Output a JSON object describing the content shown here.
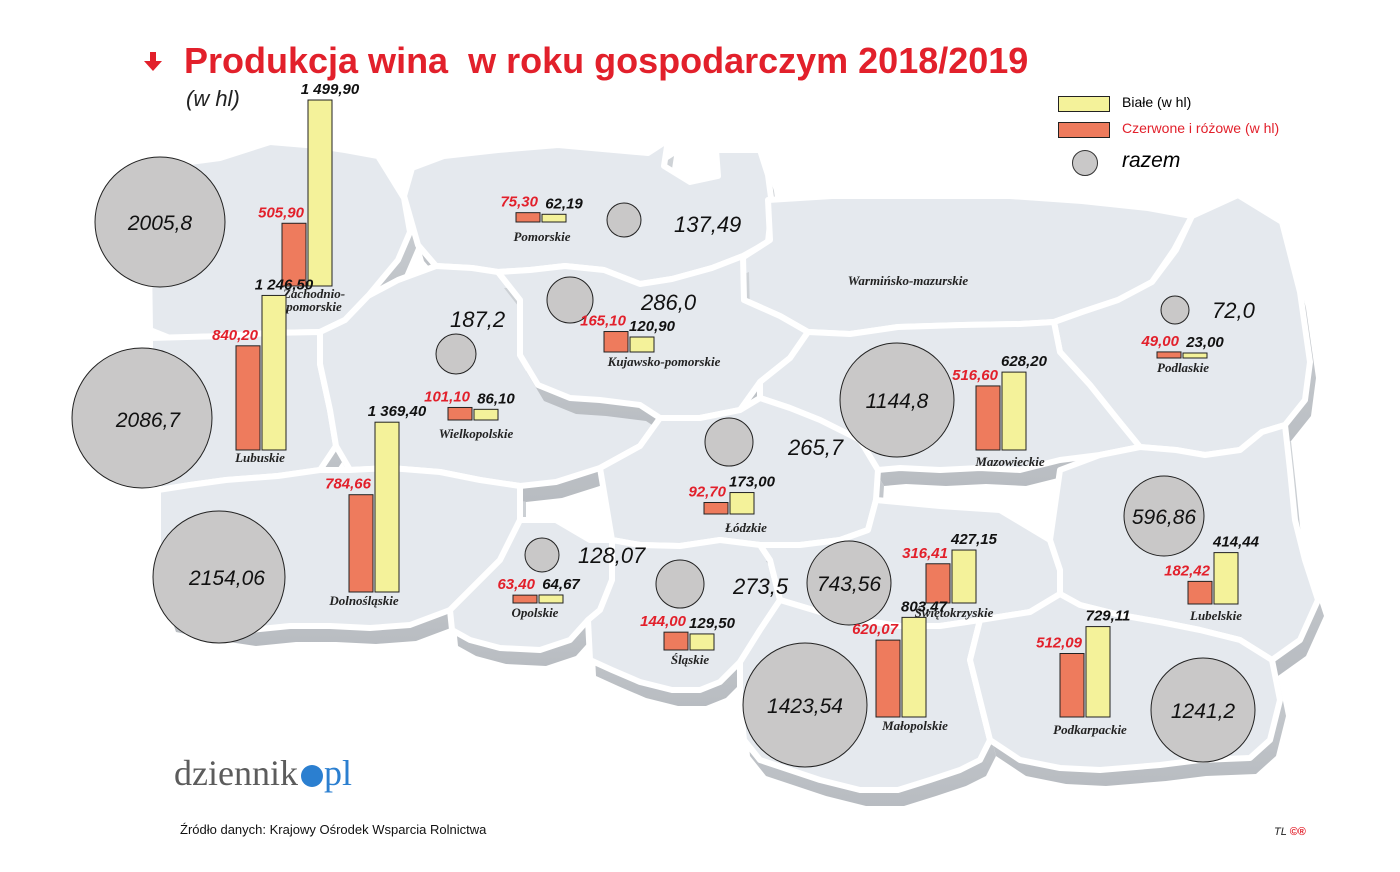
{
  "title": "Produkcja wina  w roku gospodarczym 2018/2019",
  "subtitle": "(w hl)",
  "legend": {
    "white": "Białe (w hl)",
    "red": "Czerwone i różowe (w hl)",
    "total": "razem"
  },
  "colors": {
    "title": "#e2202b",
    "white_bar": "#f4f29a",
    "red_bar": "#ee7b5d",
    "circle": "#c9c8c8",
    "region": "#e5e9ee",
    "red_value_text": "#e2202b",
    "logo_blue": "#2b7fd0"
  },
  "regions": [
    {
      "name": "Zachodnio-\npomorskie",
      "red": "505,90",
      "white": "1 499,90",
      "red_hl": 505.9,
      "white_hl": 1499.9,
      "total": "2005,8",
      "total_hl": 2005.8
    },
    {
      "name": "Pomorskie",
      "red": "75,30",
      "white": "62,19",
      "red_hl": 75.3,
      "white_hl": 62.19,
      "total": "137,49",
      "total_hl": 137.49
    },
    {
      "name": "Warmińsko-mazurskie"
    },
    {
      "name": "Podlaskie",
      "red": "49,00",
      "white": "23,00",
      "red_hl": 49.0,
      "white_hl": 23.0,
      "total": "72,0",
      "total_hl": 72.0
    },
    {
      "name": "Lubuskie",
      "red": "840,20",
      "white": "1 246,50",
      "red_hl": 840.2,
      "white_hl": 1246.5,
      "total": "2086,7",
      "total_hl": 2086.7
    },
    {
      "name": "Wielkopolskie",
      "red": "101,10",
      "white": "86,10",
      "red_hl": 101.1,
      "white_hl": 86.1,
      "total": "187,2",
      "total_hl": 187.2
    },
    {
      "name": "Kujawsko-pomorskie",
      "red": "165,10",
      "white": "120,90",
      "red_hl": 165.1,
      "white_hl": 120.9,
      "total": "286,0",
      "total_hl": 286.0
    },
    {
      "name": "Mazowieckie",
      "red": "516,60",
      "white": "628,20",
      "red_hl": 516.6,
      "white_hl": 628.2,
      "total": "1144,8",
      "total_hl": 1144.8
    },
    {
      "name": "Łódzkie",
      "red": "92,70",
      "white": "173,00",
      "red_hl": 92.7,
      "white_hl": 173.0,
      "total": "265,7",
      "total_hl": 265.7
    },
    {
      "name": "Dolnośląskie",
      "red": "784,66",
      "white": "1 369,40",
      "red_hl": 784.66,
      "white_hl": 1369.4,
      "total": "2154,06",
      "total_hl": 2154.06
    },
    {
      "name": "Opolskie",
      "red": "63,40",
      "white": "64,67",
      "red_hl": 63.4,
      "white_hl": 64.67,
      "total": "128,07",
      "total_hl": 128.07
    },
    {
      "name": "Śląskie",
      "red": "144,00",
      "white": "129,50",
      "red_hl": 144.0,
      "white_hl": 129.5,
      "total": "273,5",
      "total_hl": 273.5
    },
    {
      "name": "Świętokrzyskie",
      "red": "316,41",
      "white": "427,15",
      "red_hl": 316.41,
      "white_hl": 427.15,
      "total": "743,56",
      "total_hl": 743.56
    },
    {
      "name": "Lubelskie",
      "red": "182,42",
      "white": "414,44",
      "red_hl": 182.42,
      "white_hl": 414.44,
      "total": "596,86",
      "total_hl": 596.86
    },
    {
      "name": "Małopolskie",
      "red": "620,07",
      "white": "803,47",
      "red_hl": 620.07,
      "white_hl": 803.47,
      "total": "1423,54",
      "total_hl": 1423.54
    },
    {
      "name": "Podkarpackie",
      "red": "512,09",
      "white": "729,11",
      "red_hl": 512.09,
      "white_hl": 729.11,
      "total": "1241,2",
      "total_hl": 1241.2
    }
  ],
  "logo": {
    "main": "dziennik",
    "dot": ".",
    "tld": "pl"
  },
  "source": "Źródło danych:  Krajowy Ośrodek Wsparcia Rolnictwa",
  "credit": {
    "initials": "TL",
    "symbol": "©®"
  }
}
